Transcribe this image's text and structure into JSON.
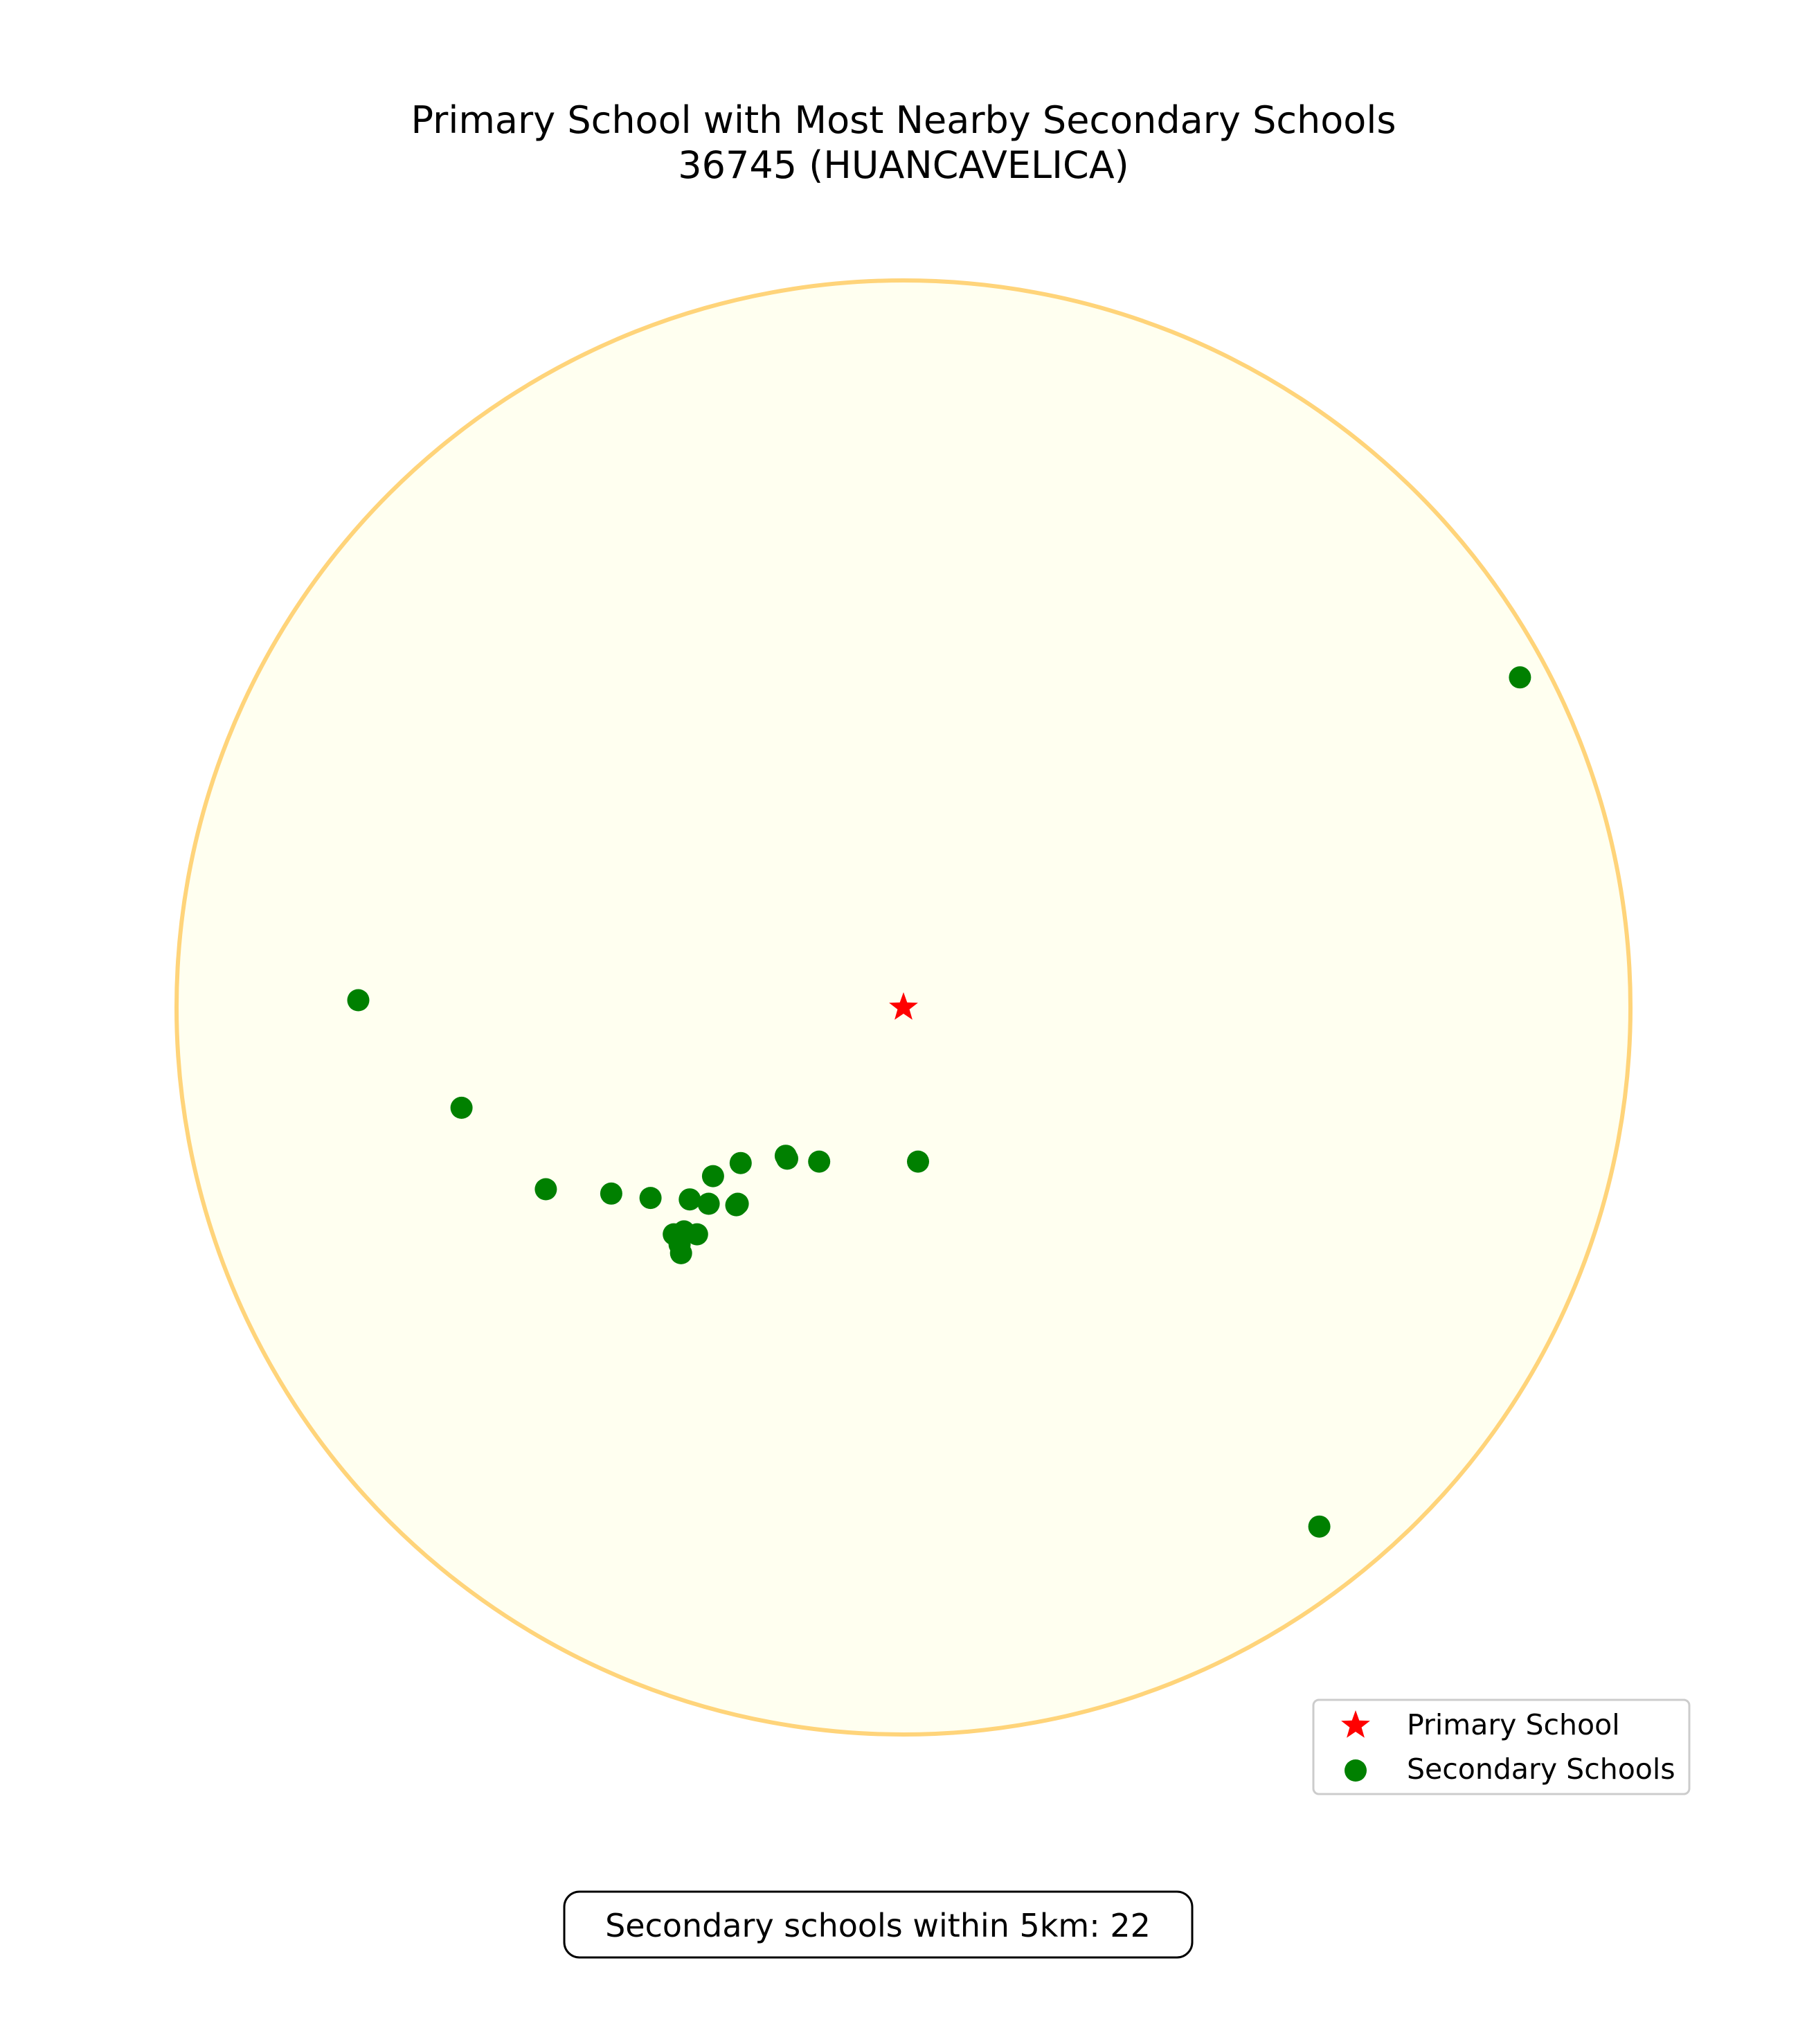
{
  "chart_data": {
    "type": "scatter",
    "title": "Primary School with Most Nearby Secondary Schools",
    "subtitle": "36745 (HUANCAVELICA)",
    "radius_km": 5,
    "grid": false,
    "axes_visible": false,
    "legend_position": "lower-right",
    "primary_school": {
      "name": "Primary School",
      "x": 0,
      "y": 0,
      "color": "#ff0000",
      "marker": "star"
    },
    "secondary_schools": {
      "name": "Secondary Schools",
      "color": "#008000",
      "marker": "circle",
      "points": [
        {
          "x": 4.24,
          "y": 2.27
        },
        {
          "x": 2.86,
          "y": -3.57
        },
        {
          "x": -3.75,
          "y": 0.05
        },
        {
          "x": -3.04,
          "y": -0.69
        },
        {
          "x": -2.46,
          "y": -1.25
        },
        {
          "x": -2.01,
          "y": -1.28
        },
        {
          "x": -1.74,
          "y": -1.31
        },
        {
          "x": -1.47,
          "y": -1.32
        },
        {
          "x": -1.34,
          "y": -1.35
        },
        {
          "x": -1.14,
          "y": -1.35
        },
        {
          "x": -1.31,
          "y": -1.16
        },
        {
          "x": -1.12,
          "y": -1.07
        },
        {
          "x": -0.81,
          "y": -1.02
        },
        {
          "x": -0.8,
          "y": -1.04
        },
        {
          "x": -0.58,
          "y": -1.06
        },
        {
          "x": 0.1,
          "y": -1.06
        },
        {
          "x": -1.58,
          "y": -1.56
        },
        {
          "x": -1.51,
          "y": -1.54
        },
        {
          "x": -1.42,
          "y": -1.56
        },
        {
          "x": -1.54,
          "y": -1.63
        },
        {
          "x": -1.53,
          "y": -1.69
        },
        {
          "x": -1.15,
          "y": -1.36
        }
      ]
    },
    "circle": {
      "fill": "#fffff0",
      "stroke": "#ffd47a"
    },
    "count_label": "Secondary schools within 5km: 22"
  },
  "legend": {
    "primary_label": "Primary School",
    "secondary_label": "Secondary Schools"
  }
}
